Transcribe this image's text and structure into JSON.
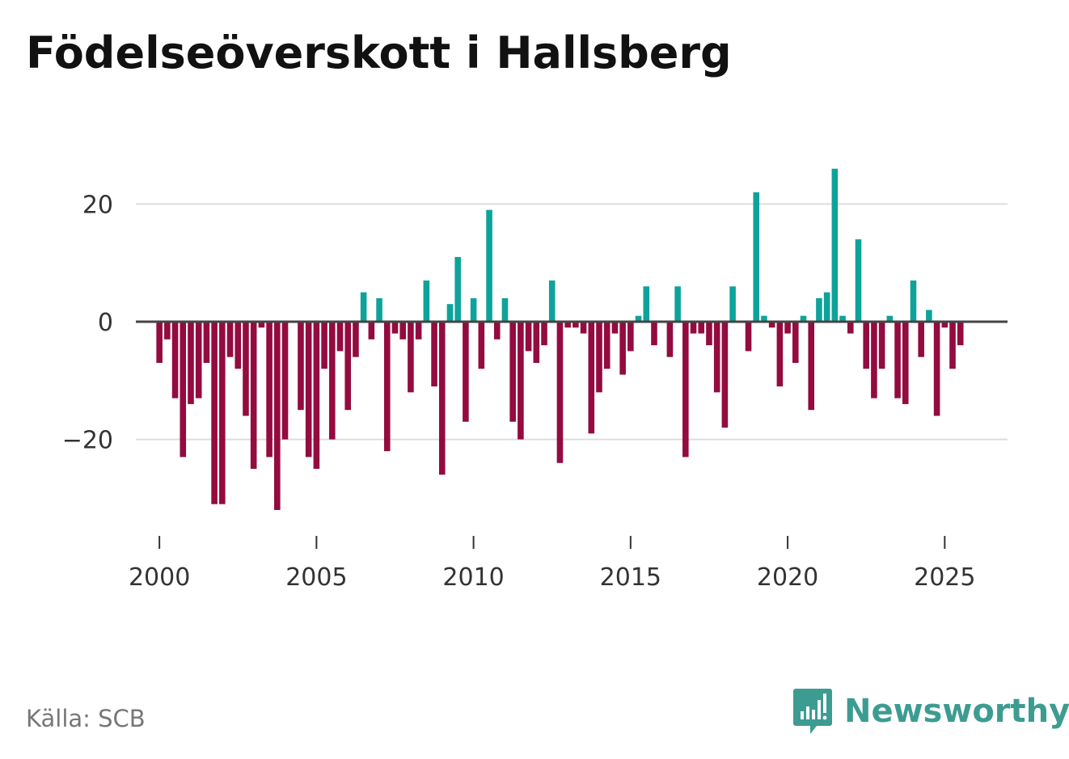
{
  "title": "Födelseöverskott i Hallsberg",
  "source": "Källa: SCB",
  "brand": "Newsworthy",
  "colors": {
    "positive": "#0da39a",
    "negative": "#930b3f",
    "grid": "#dddddd",
    "zero": "#444444",
    "brand": "#3d9c92"
  },
  "chart_data": {
    "type": "bar",
    "title": "Födelseöverskott i Hallsberg",
    "xlabel": "",
    "ylabel": "",
    "frequency": "quarterly",
    "start": 2000,
    "xlim": [
      1999.25,
      2027.0
    ],
    "ylim": [
      -37,
      30
    ],
    "yticks": [
      -20,
      0,
      20
    ],
    "ytick_labels": [
      "−20",
      "0",
      "20"
    ],
    "xticks": [
      2000,
      2005,
      2010,
      2015,
      2020,
      2025
    ],
    "xtick_labels": [
      "2000",
      "2005",
      "2010",
      "2015",
      "2020",
      "2025"
    ],
    "values": [
      -7,
      -3,
      -13,
      -23,
      -14,
      -13,
      -7,
      -31,
      -31,
      -6,
      -8,
      -16,
      -25,
      -1,
      -23,
      -32,
      -20,
      0,
      -15,
      -23,
      -25,
      -8,
      -20,
      -5,
      -15,
      -6,
      5,
      -3,
      4,
      -22,
      -2,
      -3,
      -12,
      -3,
      7,
      -11,
      -26,
      3,
      11,
      -17,
      4,
      -8,
      19,
      -3,
      4,
      -17,
      -20,
      -5,
      -7,
      -4,
      7,
      -24,
      -1,
      -1,
      -2,
      -19,
      -12,
      -8,
      -2,
      -9,
      -5,
      1,
      6,
      -4,
      0,
      -6,
      6,
      -23,
      -2,
      -2,
      -4,
      -12,
      -18,
      6,
      0,
      -5,
      22,
      1,
      -1,
      -11,
      -2,
      -7,
      1,
      -15,
      4,
      5,
      26,
      1,
      -2,
      14,
      -8,
      -13,
      -8,
      1,
      -13,
      -14,
      7,
      -6,
      2,
      -16,
      -1,
      -8,
      -4
    ]
  }
}
